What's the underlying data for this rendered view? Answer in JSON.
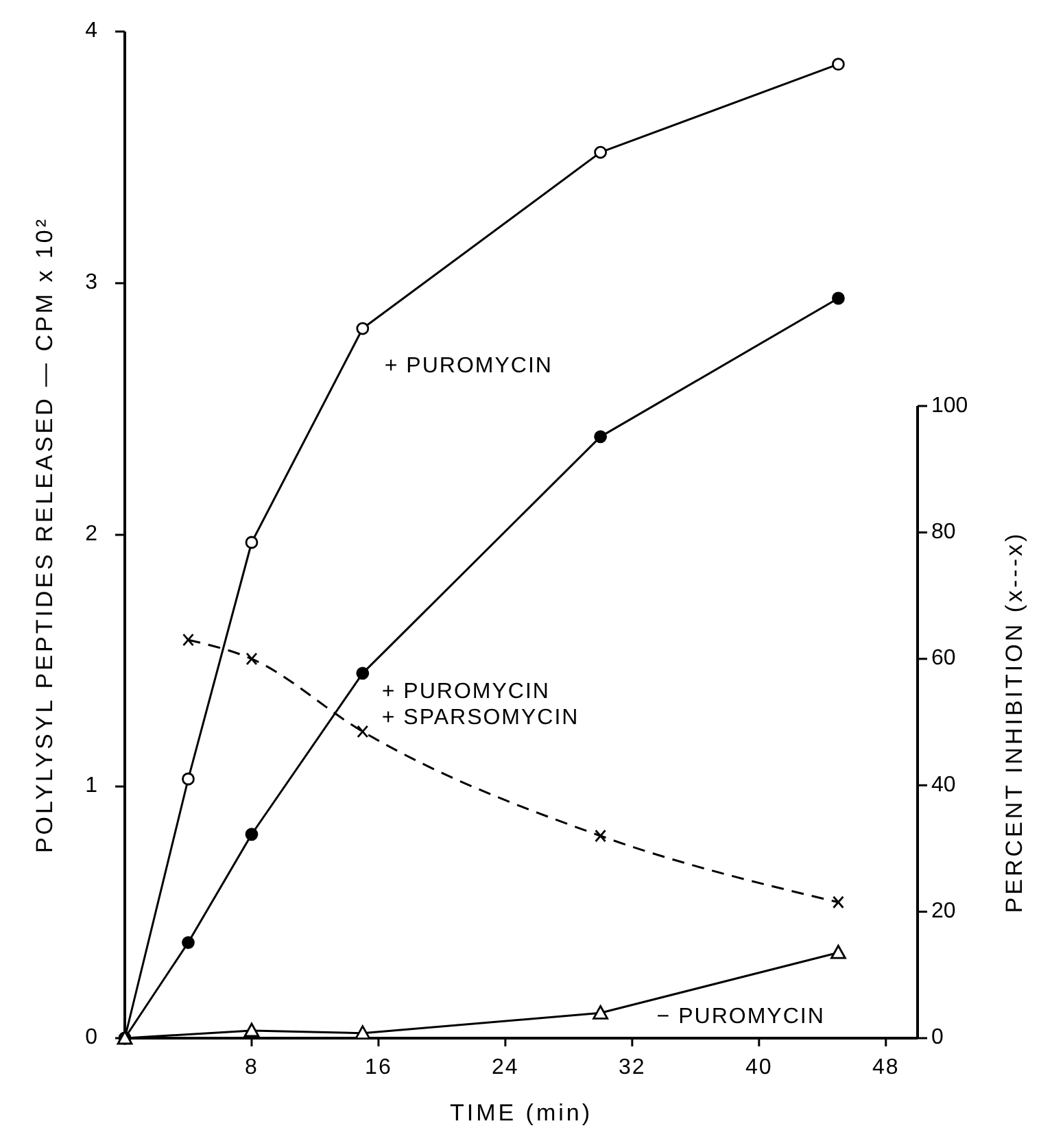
{
  "chart_data": {
    "type": "line",
    "xlabel": "TIME (min)",
    "ylabel": "POLYLYSYL PEPTIDES RELEASED — CPM x 10²",
    "y2label": "PERCENT INHIBITION (x---x)",
    "xlim": [
      0,
      50
    ],
    "xticks": [
      8,
      16,
      24,
      32,
      40,
      48
    ],
    "ylim": [
      0,
      4
    ],
    "yticks": [
      0,
      1,
      2,
      3,
      4
    ],
    "y2lim": [
      0,
      100
    ],
    "y2ticks": [
      0,
      20,
      40,
      60,
      80,
      100
    ],
    "line_style": "solid",
    "series": [
      {
        "name": "+ PUROMYCIN",
        "color": "#000000",
        "marker": "circle",
        "x": [
          0,
          4,
          8,
          15,
          30,
          45
        ],
        "values": [
          0,
          1.03,
          1.97,
          2.82,
          3.52,
          3.87
        ]
      },
      {
        "name": "+ PUROMYCIN\n+ SPARSOMYCIN",
        "color": "#000000",
        "marker": "circle",
        "x": [
          0,
          4,
          8,
          15,
          30,
          45
        ],
        "values": [
          0,
          0.38,
          0.81,
          1.45,
          2.39,
          2.94
        ]
      },
      {
        "name": "− PUROMYCIN",
        "color": "#000000",
        "marker": "triangle",
        "x": [
          0,
          8,
          15,
          30,
          45
        ],
        "values": [
          0,
          0.03,
          0.02,
          0.1,
          0.34
        ]
      },
      {
        "color": "#000000",
        "marker": "cross",
        "line_style": "dashed",
        "axis": "y2",
        "x": [
          4,
          8,
          15,
          30,
          45
        ],
        "values": [
          63,
          60,
          48.5,
          32,
          21.5
        ]
      }
    ]
  }
}
